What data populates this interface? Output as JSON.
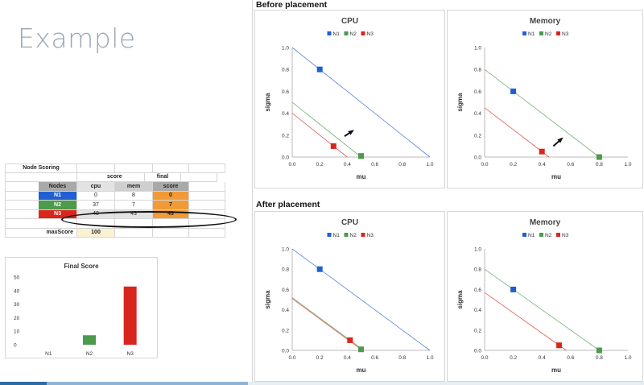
{
  "slide": {
    "title": "Example"
  },
  "score_table": {
    "title": "Node Scoring",
    "group_headers": {
      "score": "score",
      "final": "final"
    },
    "col_headers": [
      "Nodes",
      "cpu",
      "mem",
      "score"
    ],
    "rows": [
      {
        "node": "N1",
        "cpu": "0",
        "mem": "8",
        "score": "0"
      },
      {
        "node": "N2",
        "cpu": "37",
        "mem": "7",
        "score": "7"
      },
      {
        "node": "N3",
        "cpu": "48",
        "mem": "43",
        "score": "43"
      }
    ],
    "max_label": "maxScore",
    "max_value": "100"
  },
  "sections": {
    "before": "Before placement",
    "after": "After placement"
  },
  "colors": {
    "N1": "#1f5fd1",
    "N2": "#4c9a4c",
    "N3": "#d8261c"
  },
  "chart_data": [
    {
      "type": "bar",
      "title": "Final Score",
      "categories": [
        "N1",
        "N2",
        "N3"
      ],
      "values": [
        0,
        7,
        43
      ],
      "colors": [
        "#1f5fd1",
        "#4c9a4c",
        "#d8261c"
      ],
      "ylim": [
        0,
        50
      ],
      "yticks": [
        0,
        10,
        20,
        30,
        40,
        50
      ]
    },
    {
      "type": "scatter",
      "title": "CPU",
      "section": "before",
      "xlabel": "mu",
      "ylabel": "sigma",
      "xlim": [
        0,
        1
      ],
      "ylim": [
        0,
        1
      ],
      "ticks": [
        "0.0",
        "0.2",
        "0.4",
        "0.6",
        "0.8",
        "1.0"
      ],
      "legend": [
        "N1",
        "N2",
        "N3"
      ],
      "points": [
        {
          "name": "N1",
          "x": 0.2,
          "y": 0.8,
          "line": [
            [
              0,
              1.0
            ],
            [
              1.0,
              0
            ]
          ]
        },
        {
          "name": "N2",
          "x": 0.5,
          "y": 0.01,
          "line": [
            [
              0,
              0.5
            ],
            [
              0.5,
              0
            ]
          ]
        },
        {
          "name": "N3",
          "x": 0.3,
          "y": 0.1,
          "line": [
            [
              0,
              0.4
            ],
            [
              0.4,
              0
            ]
          ]
        }
      ],
      "arrow": {
        "x1": 0.38,
        "y1": 0.19,
        "x2": 0.44,
        "y2": 0.24
      }
    },
    {
      "type": "scatter",
      "title": "Memory",
      "section": "before",
      "xlabel": "mu",
      "ylabel": "sigma",
      "xlim": [
        0,
        1
      ],
      "ylim": [
        0,
        1
      ],
      "ticks": [
        "0.0",
        "0.2",
        "0.4",
        "0.6",
        "0.8",
        "1.0"
      ],
      "legend": [
        "N1",
        "N2",
        "N3"
      ],
      "points": [
        {
          "name": "N1",
          "x": 0.2,
          "y": 0.6,
          "line": null
        },
        {
          "name": "N2",
          "x": 0.8,
          "y": 0.0,
          "line": [
            [
              0,
              0.8
            ],
            [
              0.8,
              0
            ]
          ]
        },
        {
          "name": "N3",
          "x": 0.4,
          "y": 0.05,
          "line": [
            [
              0,
              0.45
            ],
            [
              0.45,
              0
            ]
          ]
        }
      ],
      "arrow": {
        "x1": 0.48,
        "y1": 0.1,
        "x2": 0.54,
        "y2": 0.17
      }
    },
    {
      "type": "scatter",
      "title": "CPU",
      "section": "after",
      "xlabel": "mu",
      "ylabel": "sigma",
      "xlim": [
        0,
        1
      ],
      "ylim": [
        0,
        1
      ],
      "ticks": [
        "0.0",
        "0.2",
        "0.4",
        "0.6",
        "0.8",
        "1.0"
      ],
      "legend": [
        "N1",
        "N2",
        "N3"
      ],
      "points": [
        {
          "name": "N1",
          "x": 0.2,
          "y": 0.8,
          "line": [
            [
              0,
              1.0
            ],
            [
              1.0,
              0
            ]
          ]
        },
        {
          "name": "N2",
          "x": 0.5,
          "y": 0.01,
          "line": [
            [
              0,
              0.52
            ],
            [
              0.52,
              0
            ]
          ]
        },
        {
          "name": "N3",
          "x": 0.42,
          "y": 0.1,
          "line": [
            [
              0,
              0.51
            ],
            [
              0.51,
              0
            ]
          ]
        }
      ],
      "arrow": null
    },
    {
      "type": "scatter",
      "title": "Memory",
      "section": "after",
      "xlabel": "mu",
      "ylabel": "sigma",
      "xlim": [
        0,
        1
      ],
      "ylim": [
        0,
        1
      ],
      "ticks": [
        "0.0",
        "0.2",
        "0.4",
        "0.6",
        "0.8",
        "1.0"
      ],
      "legend": [
        "N1",
        "N2",
        "N3"
      ],
      "points": [
        {
          "name": "N1",
          "x": 0.2,
          "y": 0.6,
          "line": null
        },
        {
          "name": "N2",
          "x": 0.8,
          "y": 0.0,
          "line": [
            [
              0,
              0.8
            ],
            [
              0.8,
              0
            ]
          ]
        },
        {
          "name": "N3",
          "x": 0.52,
          "y": 0.05,
          "line": [
            [
              0,
              0.57
            ],
            [
              0.57,
              0
            ]
          ]
        }
      ],
      "arrow": null
    }
  ]
}
